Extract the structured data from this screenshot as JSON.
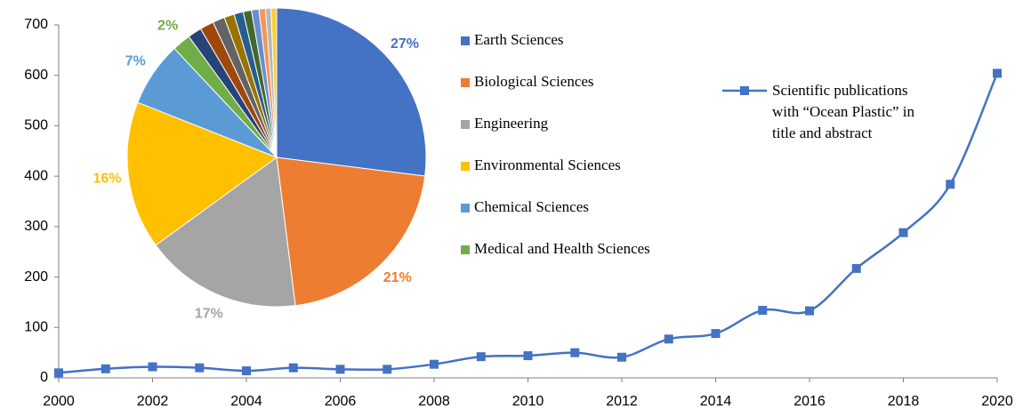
{
  "chart_data": [
    {
      "type": "line",
      "x": [
        2000,
        2001,
        2002,
        2003,
        2004,
        2005,
        2006,
        2007,
        2008,
        2009,
        2010,
        2011,
        2012,
        2013,
        2014,
        2015,
        2016,
        2017,
        2018,
        2019,
        2020
      ],
      "series": [
        {
          "name": "Scientific publications with “Ocean Plastic” in title and abstract",
          "color": "#4472c4",
          "values": [
            10,
            18,
            22,
            20,
            14,
            20,
            17,
            17,
            27,
            42,
            44,
            50,
            41,
            77,
            88,
            134,
            133,
            217,
            288,
            384,
            604
          ]
        }
      ],
      "xlim": [
        2000,
        2020
      ],
      "xticks": [
        2000,
        2002,
        2004,
        2006,
        2008,
        2010,
        2012,
        2014,
        2016,
        2018,
        2020
      ],
      "ylim": [
        0,
        700
      ],
      "yticks": [
        0,
        100,
        200,
        300,
        400,
        500,
        600,
        700
      ],
      "grid": false,
      "legend": "upper right"
    },
    {
      "type": "pie",
      "categories": [
        "Earth Sciences",
        "Biological Sciences",
        "Engineering",
        "Environmental Sciences",
        "Chemical Sciences",
        "Medical and Health Sciences",
        null,
        null,
        null,
        null,
        null,
        null,
        null,
        null,
        null,
        null
      ],
      "values": [
        27,
        21,
        17,
        16,
        7,
        2,
        1.5,
        1.5,
        1.3,
        1.1,
        1,
        0.9,
        0.8,
        0.7,
        0.6,
        0.6
      ],
      "value_labels": [
        "27%",
        "21%",
        "17%",
        "16%",
        "7%",
        "2%",
        null,
        null,
        null,
        null,
        null,
        null,
        null,
        null,
        null,
        null
      ],
      "colors": [
        "#4472c4",
        "#ed7d31",
        "#a5a5a5",
        "#ffc000",
        "#5b9bd5",
        "#70ad47",
        "#264478",
        "#9e480e",
        "#636363",
        "#997300",
        "#255e91",
        "#43682b",
        "#698ed0",
        "#f1975a",
        "#b7b7b7",
        "#ffcd33"
      ],
      "legend": "right"
    }
  ]
}
